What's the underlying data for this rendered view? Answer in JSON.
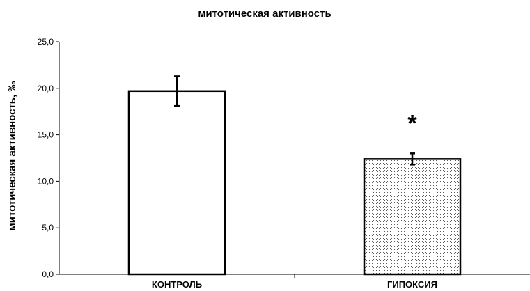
{
  "chart_data": {
    "type": "bar",
    "title": "митотическая активность",
    "xlabel": "",
    "ylabel": "митотическая активность, ‰",
    "categories": [
      "КОНТРОЛЬ",
      "ГИПОКСИЯ"
    ],
    "values": [
      19.7,
      12.4
    ],
    "error": [
      1.6,
      0.6
    ],
    "ylim": [
      0,
      25
    ],
    "yticks": [
      "0,0",
      "5,0",
      "10,0",
      "15,0",
      "20,0",
      "25,0"
    ],
    "ytick_values": [
      0,
      5,
      10,
      15,
      20,
      25
    ],
    "bar_fills": [
      "solid-white",
      "dotted-pattern"
    ],
    "annotations": [
      {
        "category": "ГИПОКСИЯ",
        "text": "*"
      }
    ],
    "grid": false,
    "legend": "none"
  }
}
